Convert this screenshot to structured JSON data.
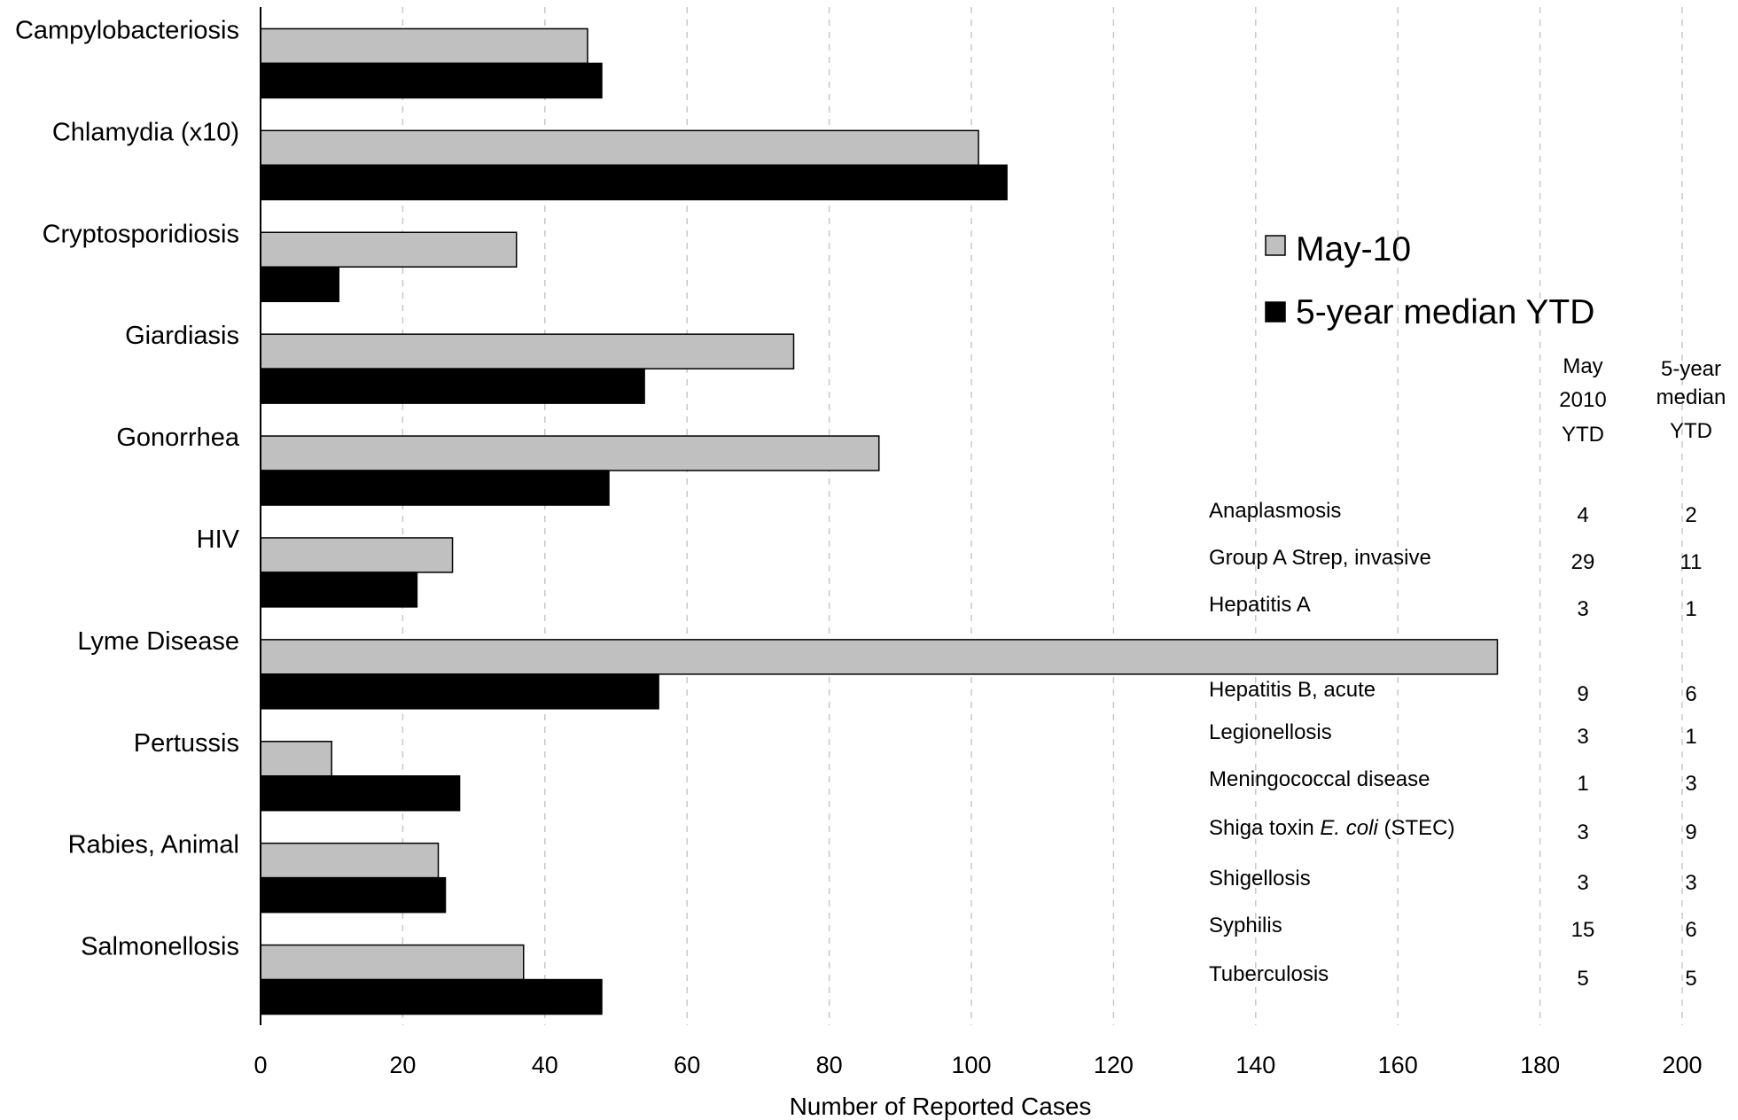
{
  "chart_data": {
    "type": "bar",
    "orientation": "horizontal",
    "categories": [
      "Campylobacteriosis",
      "Chlamydia (x10)",
      "Cryptosporidiosis",
      "Giardiasis",
      "Gonorrhea",
      "HIV",
      "Lyme Disease",
      "Pertussis",
      "Rabies, Animal",
      "Salmonellosis"
    ],
    "series": [
      {
        "name": "May-10",
        "color": "#c0c0c0",
        "values": [
          46,
          101,
          36,
          75,
          87,
          27,
          174,
          10,
          25,
          37
        ]
      },
      {
        "name": "5-year median YTD",
        "color": "#000000",
        "values": [
          48,
          105,
          11,
          54,
          49,
          22,
          56,
          28,
          26,
          48
        ]
      }
    ],
    "xlabel": "Number of Reported Cases",
    "ylabel": "",
    "xlim": [
      0,
      200
    ],
    "xticks": [
      "0",
      "20",
      "40",
      "60",
      "80",
      "100",
      "120",
      "140",
      "160",
      "180",
      "200"
    ],
    "grid": "vertical dashed",
    "legend_position": "right"
  },
  "inset_table": {
    "header_may": [
      "May",
      "2010",
      "YTD"
    ],
    "header_median": [
      "5-year",
      "median",
      "YTD"
    ],
    "rows": [
      {
        "disease": "Anaplasmosis",
        "may": "4",
        "median": "2"
      },
      {
        "disease": "Group A Strep, invasive",
        "may": "29",
        "median": "11"
      },
      {
        "disease": "Hepatitis A",
        "may": "3",
        "median": "1"
      },
      {
        "disease": "Hepatitis B, acute",
        "may": "9",
        "median": "6"
      },
      {
        "disease": "Legionellosis",
        "may": "3",
        "median": "1"
      },
      {
        "disease": "Meningococcal disease",
        "may": "1",
        "median": "3"
      },
      {
        "disease_prefix": "Shiga toxin ",
        "disease_italic": "E. coli",
        "disease_suffix": " (STEC)",
        "may": "3",
        "median": "9"
      },
      {
        "disease": "Shigellosis",
        "may": "3",
        "median": "3"
      },
      {
        "disease": "Syphilis",
        "may": "15",
        "median": "6"
      },
      {
        "disease": "Tuberculosis",
        "may": "5",
        "median": "5"
      }
    ]
  }
}
